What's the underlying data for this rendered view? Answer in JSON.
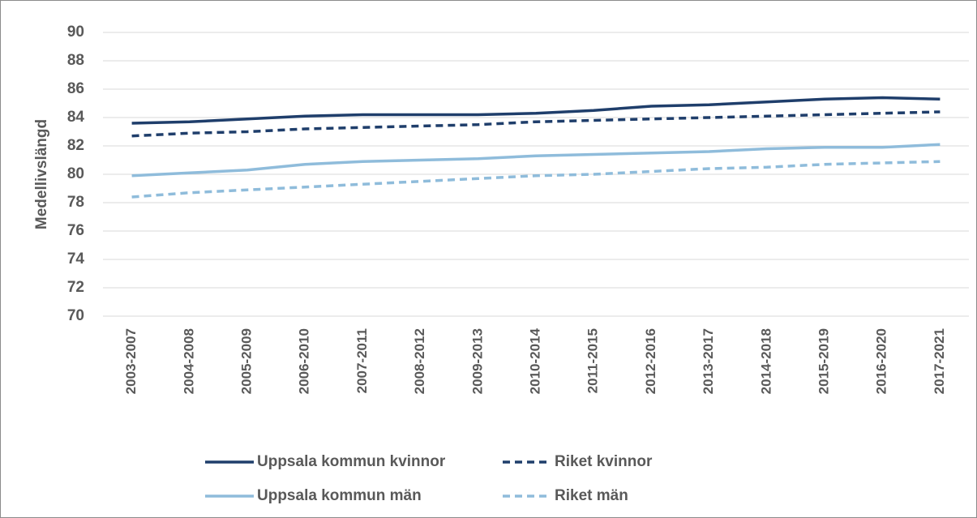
{
  "chart_data": {
    "type": "line",
    "y_label": "Medellivslängd",
    "categories": [
      "2003-2007",
      "2004-2008",
      "2005-2009",
      "2006-2010",
      "2007-2011",
      "2008-2012",
      "2009-2013",
      "2010-2014",
      "2011-2015",
      "2012-2016",
      "2013-2017",
      "2014-2018",
      "2015-2019",
      "2016-2020",
      "2017-2021"
    ],
    "series": [
      {
        "name": "Uppsala kommun kvinnor",
        "color": "#1f3e6b",
        "dashed": false,
        "values": [
          83.6,
          83.7,
          83.9,
          84.1,
          84.2,
          84.2,
          84.2,
          84.3,
          84.5,
          84.8,
          84.9,
          85.1,
          85.3,
          85.4,
          85.3
        ]
      },
      {
        "name": "Riket kvinnor",
        "color": "#1f3e6b",
        "dashed": true,
        "values": [
          82.7,
          82.9,
          83.0,
          83.2,
          83.3,
          83.4,
          83.5,
          83.7,
          83.8,
          83.9,
          84.0,
          84.1,
          84.2,
          84.3,
          84.4
        ]
      },
      {
        "name": "Uppsala kommun män",
        "color": "#8fbcdb",
        "dashed": false,
        "values": [
          79.9,
          80.1,
          80.3,
          80.7,
          80.9,
          81.0,
          81.1,
          81.3,
          81.4,
          81.5,
          81.6,
          81.8,
          81.9,
          81.9,
          82.1
        ]
      },
      {
        "name": "Riket män",
        "color": "#8fbcdb",
        "dashed": true,
        "values": [
          78.4,
          78.7,
          78.9,
          79.1,
          79.3,
          79.5,
          79.7,
          79.9,
          80.0,
          80.2,
          80.4,
          80.5,
          80.7,
          80.8,
          80.9
        ]
      }
    ],
    "ylim": [
      70,
      90
    ],
    "yticks": [
      70,
      72,
      74,
      76,
      78,
      80,
      82,
      84,
      86,
      88,
      90
    ],
    "grid": true,
    "legend": "bottom"
  }
}
